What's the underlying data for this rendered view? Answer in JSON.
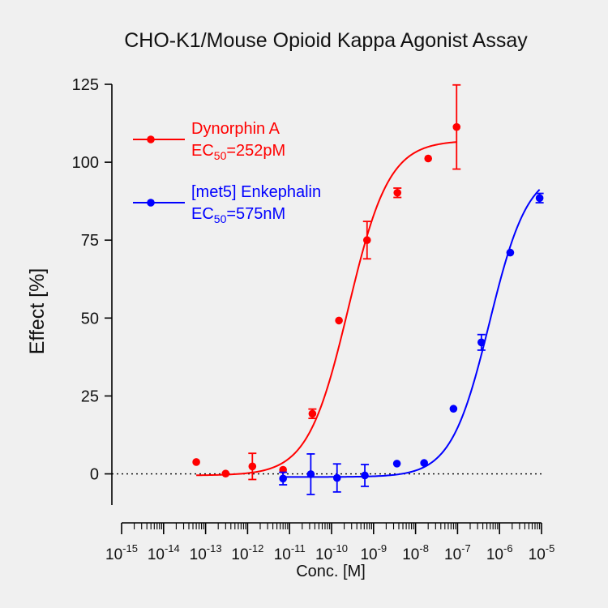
{
  "chart_data": {
    "type": "scatter",
    "title": "CHO-K1/Mouse Opioid Kappa Agonist Assay",
    "xlabel": "Conc. [M]",
    "ylabel": "Effect  [%]",
    "x_scale": "log",
    "xlim_exponent": [
      -15,
      -5
    ],
    "ylim": [
      -10,
      125
    ],
    "x_ticks": [
      {
        "base": "10",
        "exp": "-15"
      },
      {
        "base": "10",
        "exp": "-14"
      },
      {
        "base": "10",
        "exp": "-13"
      },
      {
        "base": "10",
        "exp": "-12"
      },
      {
        "base": "10",
        "exp": "-11"
      },
      {
        "base": "10",
        "exp": "-10"
      },
      {
        "base": "10",
        "exp": "-9"
      },
      {
        "base": "10",
        "exp": "-8"
      },
      {
        "base": "10",
        "exp": "-7"
      },
      {
        "base": "10",
        "exp": "-6"
      },
      {
        "base": "10",
        "exp": "-5"
      }
    ],
    "y_ticks": [
      "0",
      "25",
      "50",
      "75",
      "100",
      "125"
    ],
    "y_tick_values": [
      0,
      25,
      50,
      75,
      100,
      125
    ],
    "zero_line": "dotted",
    "grid": false,
    "legend_position": "top-left",
    "series": [
      {
        "name": "Dynorphin A",
        "ec50_label": {
          "prefix": "EC",
          "sub": "50",
          "suffix": "=252pM"
        },
        "color": "#ff0000",
        "ec50_M": 2.52e-10,
        "fit": {
          "bottom": -0.5,
          "top": 107,
          "hill": 0.9
        },
        "x": [
          6e-14,
          3e-13,
          1.3e-12,
          7e-12,
          3.5e-11,
          1.5e-10,
          7e-10,
          3.7e-09,
          2e-08,
          9.5e-08
        ],
        "y": [
          3.8,
          0.1,
          2.4,
          1.3,
          19.3,
          49.2,
          75.0,
          90.2,
          101.2,
          111.3
        ],
        "err": [
          0,
          0,
          4.2,
          0,
          1.5,
          0,
          6.0,
          1.5,
          0,
          13.5
        ]
      },
      {
        "name": "[met5] Enkephalin",
        "ec50_label": {
          "prefix": "EC",
          "sub": "50",
          "suffix": "=575nM"
        },
        "color": "#0000ff",
        "ec50_M": 5.75e-07,
        "fit": {
          "bottom": -1.0,
          "top": 98,
          "hill": 0.95
        },
        "x": [
          7e-12,
          3.2e-11,
          1.35e-10,
          6.2e-10,
          3.6e-09,
          1.6e-08,
          8e-08,
          3.7e-07,
          1.8e-06,
          9e-06
        ],
        "y": [
          -1.5,
          -0.1,
          -1.3,
          -0.5,
          3.3,
          3.5,
          20.9,
          42.2,
          71.0,
          88.5
        ],
        "err": [
          2.0,
          6.5,
          4.5,
          3.5,
          0,
          0,
          0,
          2.5,
          0,
          1.5
        ]
      }
    ]
  }
}
